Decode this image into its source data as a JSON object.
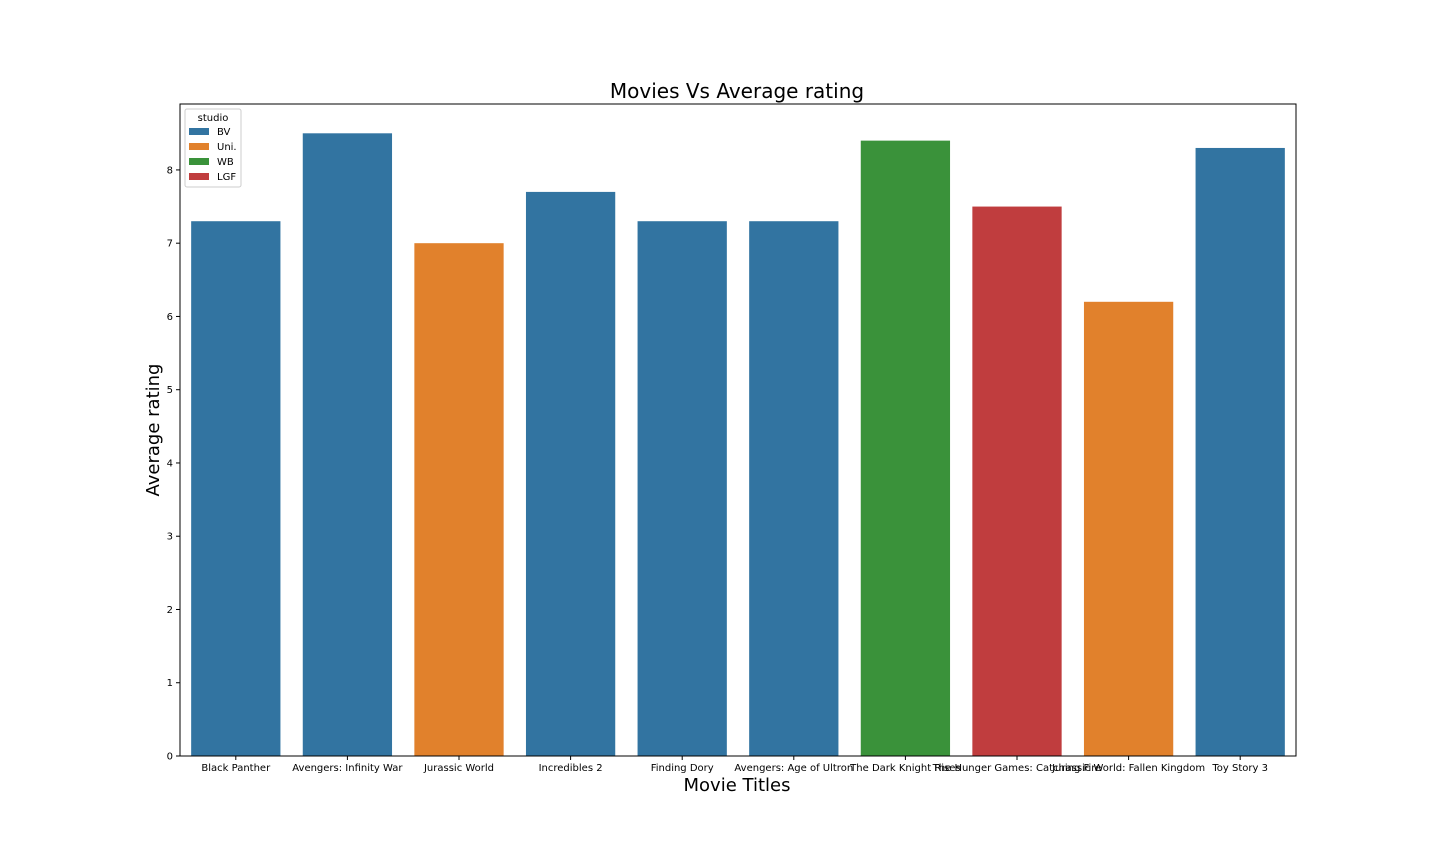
{
  "chart_data": {
    "type": "bar",
    "title": "Movies Vs Average rating",
    "xlabel": "Movie Titles",
    "ylabel": "Average rating",
    "ylim": [
      0,
      8.9
    ],
    "yticks": [
      0,
      1,
      2,
      3,
      4,
      5,
      6,
      7,
      8
    ],
    "grid": false,
    "categories": [
      "Black Panther",
      "Avengers: Infinity War",
      "Jurassic World",
      "Incredibles 2",
      "Finding Dory",
      "Avengers: Age of Ultron",
      "The Dark Knight Rises",
      "The Hunger Games: Catching Fire",
      "Jurassic World: Fallen Kingdom",
      "Toy Story 3"
    ],
    "values": [
      7.3,
      8.5,
      7.0,
      7.7,
      7.3,
      7.3,
      8.4,
      7.5,
      6.2,
      8.3
    ],
    "hue": [
      "BV",
      "BV",
      "Uni.",
      "BV",
      "BV",
      "BV",
      "WB",
      "LGF",
      "Uni.",
      "BV"
    ],
    "legend": {
      "title": "studio",
      "placement": "upper-left",
      "entries": [
        {
          "label": "BV",
          "color": "#3274a1"
        },
        {
          "label": "Uni.",
          "color": "#e1812c"
        },
        {
          "label": "WB",
          "color": "#3a923a"
        },
        {
          "label": "LGF",
          "color": "#c03d3e"
        }
      ]
    }
  }
}
